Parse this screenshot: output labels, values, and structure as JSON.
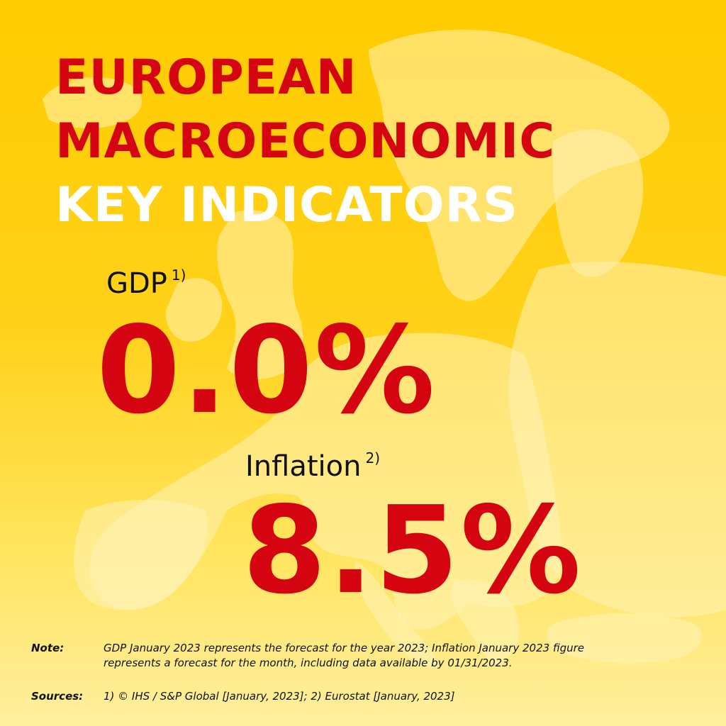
{
  "colors": {
    "background": "#FFCC00",
    "accent_red": "#D40511",
    "map_fill": "#FFF3B8",
    "text_dark": "#111111"
  },
  "title": {
    "line1": "EUROPEAN",
    "line2": "MACROECONOMIC",
    "line3": "KEY INDICATORS"
  },
  "gdp": {
    "label": "GDP",
    "footnote_ref": "1)",
    "value": "0.0%"
  },
  "inflation": {
    "label": "Inflation",
    "footnote_ref": "2)",
    "value": "8.5%"
  },
  "note": {
    "key": "Note:",
    "line1": "GDP January 2023 represents the forecast for the year 2023; Inflation January 2023 figure",
    "line2": "represents a forecast for the month, including data available by 01/31/2023."
  },
  "sources": {
    "key": "Sources:",
    "text": "1) © IHS / S&P Global [January, 2023]; 2) Eurostat [January, 2023]"
  },
  "background_graphic": "europe-map-silhouette"
}
